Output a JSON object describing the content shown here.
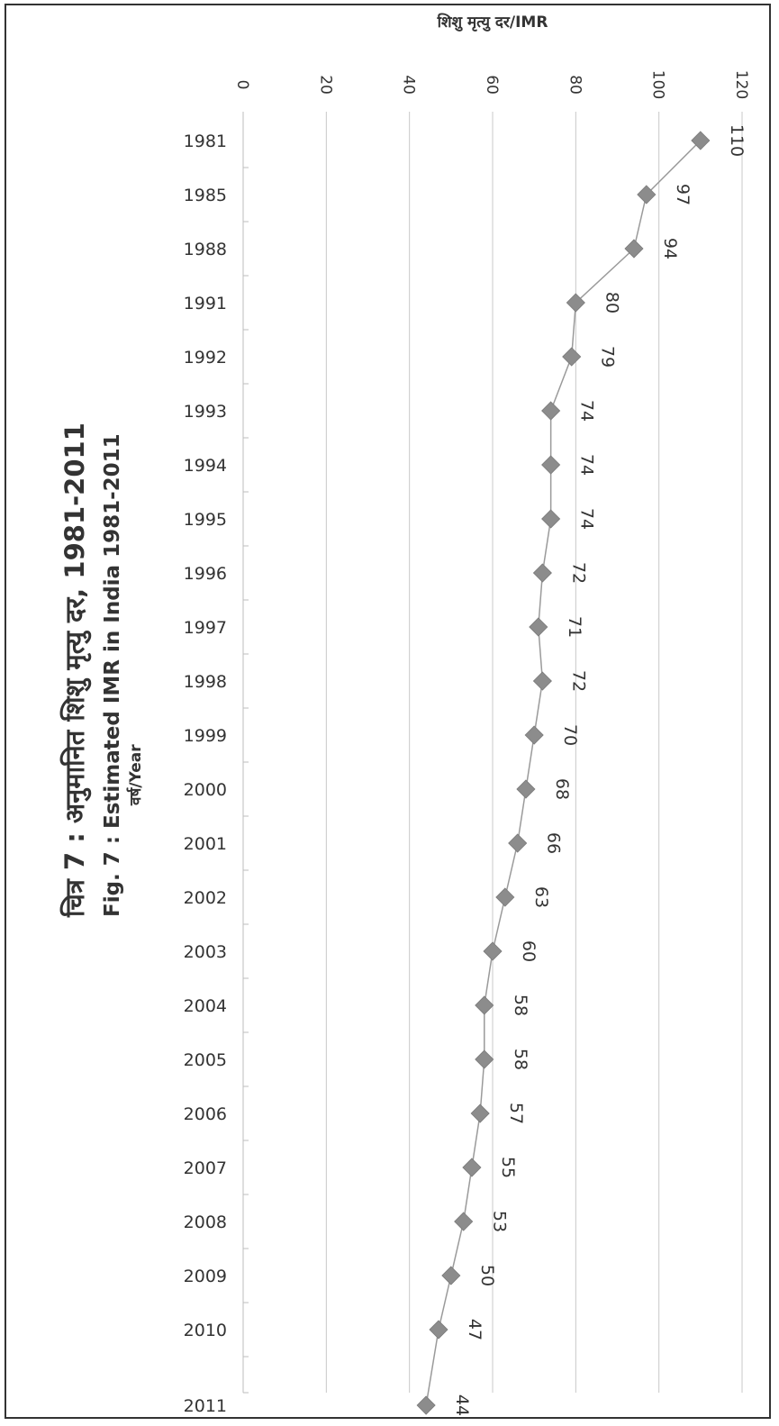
{
  "chart_data": {
    "type": "line",
    "title": "चित्र 7 : अनुमानित शिशु मृत्यु दर, 1981-2011",
    "subtitle": "Fig. 7 : Estimated IMR in India 1981-2011",
    "xlabel": "वर्ष/Year",
    "ylabel": "शिशु मृत्यु दर/IMR",
    "orientation": "rotated-90-clockwise",
    "ylim": [
      0,
      120
    ],
    "yticks": [
      0,
      20,
      40,
      60,
      80,
      100,
      120
    ],
    "grid": true,
    "marker": "diamond",
    "colors": {
      "line": "#9a9a9a",
      "marker": "#8c8c8c",
      "grid": "#c8c8c8",
      "text": "#333333"
    },
    "categories": [
      "1981",
      "1985",
      "1988",
      "1991",
      "1992",
      "1993",
      "1994",
      "1995",
      "1996",
      "1997",
      "1998",
      "1999",
      "2000",
      "2001",
      "2002",
      "2003",
      "2004",
      "2005",
      "2006",
      "2007",
      "2008",
      "2009",
      "2010",
      "2011"
    ],
    "values": [
      110,
      97,
      94,
      80,
      79,
      74,
      74,
      74,
      72,
      71,
      72,
      70,
      68,
      66,
      63,
      60,
      58,
      58,
      57,
      55,
      53,
      50,
      47,
      44
    ],
    "data_labels": [
      "110",
      "97",
      "94",
      "80",
      "79",
      "74",
      "74",
      "74",
      "72",
      "71",
      "72",
      "70",
      "68",
      "66",
      "63",
      "60",
      "58",
      "58",
      "57",
      "55",
      "53",
      "50",
      "47",
      "44"
    ]
  }
}
